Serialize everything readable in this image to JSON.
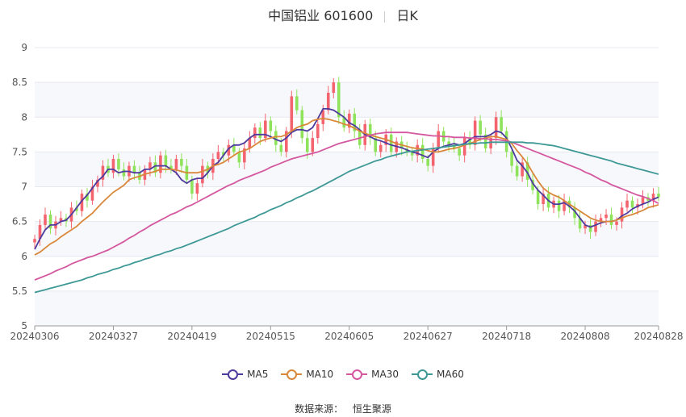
{
  "header": {
    "title": "中国铝业 601600",
    "period": "日K"
  },
  "footer": {
    "source_label": "数据来源：",
    "source_value": "恒生聚源"
  },
  "chart_data": {
    "type": "candlestick",
    "ylim": [
      5,
      9
    ],
    "yticks": [
      5,
      5.5,
      6,
      6.5,
      7,
      7.5,
      8,
      8.5,
      9
    ],
    "xtick_labels": [
      "20240306",
      "20240327",
      "20240419",
      "20240515",
      "20240605",
      "20240627",
      "20240718",
      "20240808",
      "20240828"
    ],
    "xtick_index": [
      0,
      15,
      30,
      45,
      60,
      75,
      90,
      105,
      119
    ],
    "num_points": 120,
    "grid": true,
    "legend_position": "bottom",
    "up_color": "#f4646e",
    "down_color": "#8ee35a",
    "closes": [
      6.25,
      6.45,
      6.6,
      6.4,
      6.5,
      6.55,
      6.5,
      6.7,
      6.65,
      6.9,
      6.8,
      7.0,
      7.1,
      7.3,
      7.2,
      7.4,
      7.25,
      7.15,
      7.3,
      7.2,
      7.1,
      7.25,
      7.35,
      7.2,
      7.45,
      7.3,
      7.25,
      7.4,
      7.3,
      7.1,
      6.9,
      7.05,
      7.3,
      7.2,
      7.4,
      7.5,
      7.45,
      7.6,
      7.5,
      7.35,
      7.55,
      7.7,
      7.85,
      7.7,
      7.95,
      7.8,
      7.6,
      7.5,
      7.8,
      8.3,
      8.1,
      7.7,
      7.5,
      7.7,
      7.9,
      8.1,
      8.35,
      8.5,
      8.0,
      7.85,
      8.05,
      7.8,
      7.6,
      7.9,
      7.7,
      7.5,
      7.6,
      7.75,
      7.5,
      7.65,
      7.55,
      7.5,
      7.45,
      7.6,
      7.4,
      7.3,
      7.55,
      7.8,
      7.65,
      7.6,
      7.55,
      7.45,
      7.7,
      7.6,
      7.95,
      7.75,
      7.55,
      7.7,
      8.0,
      7.8,
      7.5,
      7.3,
      7.15,
      7.35,
      7.1,
      6.95,
      6.75,
      6.9,
      6.7,
      6.8,
      6.65,
      6.8,
      6.7,
      6.55,
      6.4,
      6.45,
      6.35,
      6.5,
      6.55,
      6.6,
      6.45,
      6.5,
      6.7,
      6.8,
      6.7,
      6.75,
      6.85,
      6.8,
      6.9,
      6.85
    ],
    "series": [
      {
        "name": "MA5",
        "color": "#4e3b9d",
        "values": [
          6.1,
          6.25,
          6.38,
          6.45,
          6.45,
          6.5,
          6.52,
          6.6,
          6.7,
          6.8,
          6.88,
          6.98,
          7.08,
          7.15,
          7.25,
          7.25,
          7.2,
          7.22,
          7.22,
          7.2,
          7.2,
          7.25,
          7.25,
          7.3,
          7.3,
          7.3,
          7.25,
          7.2,
          7.1,
          7.05,
          7.1,
          7.12,
          7.12,
          7.2,
          7.3,
          7.35,
          7.45,
          7.55,
          7.6,
          7.6,
          7.63,
          7.7,
          7.75,
          7.75,
          7.75,
          7.72,
          7.68,
          7.65,
          7.7,
          7.78,
          7.82,
          7.82,
          7.8,
          7.85,
          7.98,
          8.12,
          8.12,
          8.1,
          8.05,
          8.0,
          7.92,
          7.88,
          7.82,
          7.75,
          7.72,
          7.68,
          7.66,
          7.63,
          7.6,
          7.58,
          7.56,
          7.53,
          7.5,
          7.48,
          7.45,
          7.42,
          7.5,
          7.55,
          7.58,
          7.6,
          7.62,
          7.6,
          7.62,
          7.68,
          7.72,
          7.72,
          7.72,
          7.75,
          7.8,
          7.78,
          7.7,
          7.55,
          7.38,
          7.3,
          7.2,
          7.05,
          6.95,
          6.88,
          6.8,
          6.75,
          6.75,
          6.77,
          6.72,
          6.65,
          6.55,
          6.45,
          6.42,
          6.45,
          6.48,
          6.5,
          6.5,
          6.52,
          6.58,
          6.62,
          6.68,
          6.72,
          6.75,
          6.78,
          6.82,
          6.85
        ]
      },
      {
        "name": "MA10",
        "color": "#d9883b",
        "values": [
          6.02,
          6.06,
          6.12,
          6.18,
          6.22,
          6.28,
          6.33,
          6.38,
          6.43,
          6.5,
          6.56,
          6.62,
          6.7,
          6.78,
          6.85,
          6.92,
          6.97,
          7.02,
          7.1,
          7.13,
          7.15,
          7.18,
          7.2,
          7.22,
          7.25,
          7.25,
          7.25,
          7.24,
          7.22,
          7.2,
          7.2,
          7.2,
          7.22,
          7.25,
          7.3,
          7.32,
          7.35,
          7.4,
          7.45,
          7.5,
          7.52,
          7.55,
          7.6,
          7.65,
          7.68,
          7.7,
          7.72,
          7.72,
          7.75,
          7.8,
          7.85,
          7.88,
          7.9,
          7.95,
          7.97,
          7.98,
          7.97,
          7.95,
          7.93,
          7.9,
          7.88,
          7.84,
          7.8,
          7.77,
          7.74,
          7.72,
          7.7,
          7.68,
          7.65,
          7.62,
          7.6,
          7.58,
          7.56,
          7.55,
          7.54,
          7.52,
          7.5,
          7.5,
          7.52,
          7.54,
          7.55,
          7.57,
          7.6,
          7.62,
          7.65,
          7.68,
          7.7,
          7.72,
          7.72,
          7.7,
          7.68,
          7.62,
          7.52,
          7.43,
          7.33,
          7.2,
          7.08,
          6.98,
          6.92,
          6.88,
          6.85,
          6.8,
          6.75,
          6.7,
          6.65,
          6.6,
          6.55,
          6.52,
          6.5,
          6.5,
          6.5,
          6.52,
          6.55,
          6.58,
          6.6,
          6.63,
          6.66,
          6.7,
          6.72,
          6.74
        ]
      },
      {
        "name": "MA30",
        "color": "#d4579f",
        "values": [
          5.66,
          5.69,
          5.72,
          5.75,
          5.79,
          5.82,
          5.85,
          5.89,
          5.92,
          5.95,
          5.98,
          6.0,
          6.03,
          6.06,
          6.09,
          6.13,
          6.17,
          6.21,
          6.26,
          6.3,
          6.35,
          6.39,
          6.44,
          6.48,
          6.52,
          6.56,
          6.6,
          6.63,
          6.67,
          6.71,
          6.74,
          6.78,
          6.82,
          6.86,
          6.9,
          6.94,
          6.98,
          7.02,
          7.05,
          7.09,
          7.12,
          7.15,
          7.18,
          7.21,
          7.24,
          7.28,
          7.31,
          7.34,
          7.37,
          7.4,
          7.42,
          7.44,
          7.46,
          7.48,
          7.5,
          7.53,
          7.56,
          7.59,
          7.62,
          7.64,
          7.66,
          7.68,
          7.7,
          7.72,
          7.74,
          7.76,
          7.77,
          7.78,
          7.78,
          7.78,
          7.78,
          7.78,
          7.77,
          7.76,
          7.75,
          7.74,
          7.73,
          7.73,
          7.72,
          7.72,
          7.71,
          7.71,
          7.71,
          7.7,
          7.7,
          7.69,
          7.69,
          7.68,
          7.68,
          7.67,
          7.66,
          7.64,
          7.61,
          7.58,
          7.55,
          7.52,
          7.49,
          7.46,
          7.43,
          7.4,
          7.37,
          7.34,
          7.31,
          7.28,
          7.25,
          7.21,
          7.18,
          7.14,
          7.1,
          7.07,
          7.03,
          7.0,
          6.97,
          6.94,
          6.91,
          6.88,
          6.86,
          6.83,
          6.8,
          6.76
        ]
      },
      {
        "name": "MA60",
        "color": "#3e9996",
        "values": [
          5.48,
          5.5,
          5.52,
          5.54,
          5.56,
          5.58,
          5.6,
          5.62,
          5.64,
          5.66,
          5.69,
          5.71,
          5.74,
          5.76,
          5.78,
          5.81,
          5.83,
          5.86,
          5.88,
          5.91,
          5.93,
          5.96,
          5.98,
          6.01,
          6.03,
          6.06,
          6.08,
          6.11,
          6.13,
          6.16,
          6.19,
          6.22,
          6.25,
          6.28,
          6.31,
          6.34,
          6.37,
          6.4,
          6.44,
          6.47,
          6.5,
          6.53,
          6.56,
          6.6,
          6.63,
          6.67,
          6.7,
          6.73,
          6.77,
          6.8,
          6.84,
          6.87,
          6.91,
          6.94,
          6.98,
          7.02,
          7.06,
          7.1,
          7.14,
          7.18,
          7.22,
          7.25,
          7.28,
          7.31,
          7.34,
          7.37,
          7.39,
          7.42,
          7.44,
          7.46,
          7.48,
          7.5,
          7.51,
          7.52,
          7.53,
          7.54,
          7.55,
          7.56,
          7.57,
          7.58,
          7.59,
          7.6,
          7.61,
          7.62,
          7.62,
          7.63,
          7.63,
          7.64,
          7.64,
          7.64,
          7.64,
          7.64,
          7.64,
          7.64,
          7.63,
          7.63,
          7.62,
          7.61,
          7.6,
          7.59,
          7.57,
          7.55,
          7.53,
          7.51,
          7.49,
          7.47,
          7.45,
          7.43,
          7.41,
          7.39,
          7.37,
          7.34,
          7.32,
          7.3,
          7.28,
          7.26,
          7.24,
          7.22,
          7.2,
          7.18
        ]
      }
    ]
  }
}
